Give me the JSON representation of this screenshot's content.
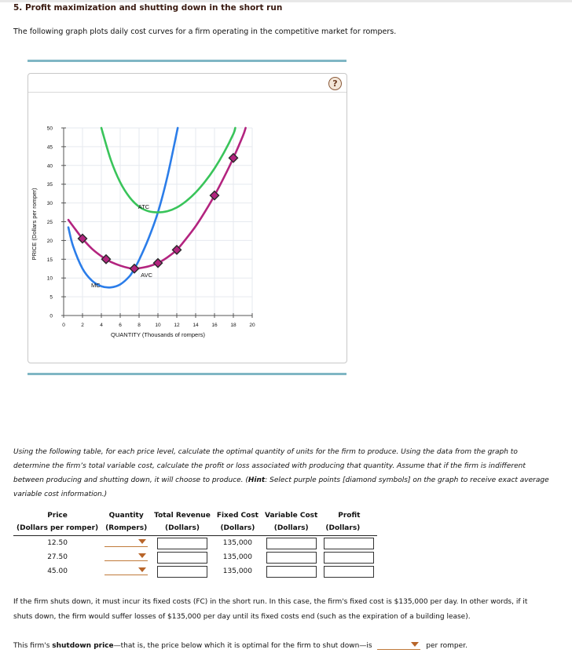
{
  "question": {
    "title": "5. Profit maximization and shutting down in the short run",
    "intro": "The following graph plots daily cost curves for a firm operating in the competitive market for rompers."
  },
  "graph": {
    "help_label": "?",
    "colors": {
      "MC": "#2b7de9",
      "ATC": "#39c45a",
      "AVC": "#b3247f",
      "rule": "#7fb6c4"
    }
  },
  "chart_data": {
    "type": "line",
    "title": "",
    "xlabel": "QUANTITY (Thousands of rompers)",
    "ylabel": "PRICE (Dollars per romper)",
    "xlim": [
      0,
      20
    ],
    "ylim": [
      0,
      50
    ],
    "x_ticks": [
      0,
      2,
      4,
      6,
      8,
      10,
      12,
      14,
      16,
      18,
      20
    ],
    "y_ticks": [
      0,
      5,
      10,
      15,
      20,
      25,
      30,
      35,
      40,
      45,
      50
    ],
    "grid": true,
    "series": [
      {
        "name": "MC",
        "color": "#2b7de9",
        "x": [
          0.5,
          1,
          2,
          3,
          4,
          5,
          6,
          7,
          7.5,
          8,
          9,
          10,
          11,
          12.1
        ],
        "y": [
          23.5,
          18.5,
          12.5,
          9.3,
          7.8,
          7.5,
          8.3,
          10.5,
          12.5,
          14.8,
          20.5,
          27.5,
          37,
          50
        ]
      },
      {
        "name": "ATC",
        "color": "#39c45a",
        "x": [
          4,
          5,
          6,
          7,
          8,
          9,
          10,
          11,
          12,
          13,
          14,
          15,
          16,
          17,
          18,
          18.2
        ],
        "y": [
          50,
          41.5,
          35.5,
          31.5,
          29,
          27.8,
          27.5,
          27.8,
          28.8,
          30.5,
          32.8,
          35.7,
          39.2,
          43.4,
          48.4,
          50
        ]
      },
      {
        "name": "AVC",
        "color": "#b3247f",
        "x": [
          0.5,
          1,
          2,
          3,
          4,
          4.5,
          5,
          6,
          7,
          7.5,
          8,
          9,
          10,
          11,
          12,
          13,
          14,
          15,
          16,
          17,
          18,
          19,
          19.3
        ],
        "y": [
          25.5,
          23.8,
          20.5,
          17.8,
          15.8,
          15,
          14.3,
          13.3,
          12.6,
          12.5,
          12.6,
          13.1,
          14,
          15.5,
          17.5,
          20.5,
          23.8,
          27.7,
          32,
          36.8,
          42,
          47.8,
          50
        ]
      }
    ],
    "avc_points": [
      {
        "x": 2,
        "y": 20.5
      },
      {
        "x": 4.5,
        "y": 15
      },
      {
        "x": 7.5,
        "y": 12.5
      },
      {
        "x": 10,
        "y": 14
      },
      {
        "x": 12,
        "y": 17.5
      },
      {
        "x": 16,
        "y": 32
      },
      {
        "x": 18,
        "y": 42
      }
    ],
    "annotations": [
      {
        "text": "ATC",
        "x": 8.5,
        "y": 28.5
      },
      {
        "text": "AVC",
        "x": 8.8,
        "y": 10.3
      },
      {
        "text": "MC",
        "x": 3.4,
        "y": 7.5
      }
    ]
  },
  "instructions": {
    "line1": "Using the following table, for each price level, calculate the optimal quantity of units for the firm to produce. Using the data from the graph to",
    "line2": "determine the firm’s total variable cost, calculate the profit or loss associated with producing that quantity. Assume that if the firm is indifferent",
    "line3a": "between producing and shutting down, it will choose to produce. (",
    "hint_label": "Hint",
    "line3b": ": Select purple points [diamond symbols] on the graph to receive exact average",
    "line4": "variable cost information.)"
  },
  "table": {
    "headers": [
      {
        "title": "Price",
        "sub": "(Dollars per romper)"
      },
      {
        "title": "Quantity",
        "sub": "(Rompers)"
      },
      {
        "title": "Total Revenue",
        "sub": "(Dollars)"
      },
      {
        "title": "Fixed Cost",
        "sub": "(Dollars)"
      },
      {
        "title": "Variable Cost",
        "sub": "(Dollars)"
      },
      {
        "title": "Profit",
        "sub": "(Dollars)"
      }
    ],
    "rows": [
      {
        "price": "12.50",
        "quantity": "",
        "total_revenue": "",
        "fixed_cost": "135,000",
        "variable_cost": "",
        "profit": ""
      },
      {
        "price": "27.50",
        "quantity": "",
        "total_revenue": "",
        "fixed_cost": "135,000",
        "variable_cost": "",
        "profit": ""
      },
      {
        "price": "45.00",
        "quantity": "",
        "total_revenue": "",
        "fixed_cost": "135,000",
        "variable_cost": "",
        "profit": ""
      }
    ]
  },
  "fixed_cost_text": {
    "line1": "If the firm shuts down, it must incur its fixed costs (FC) in the short run. In this case, the firm's fixed cost is $135,000 per day. In other words, if it",
    "line2": "shuts down, the firm would suffer losses of $135,000 per day until its fixed costs end (such as the expiration of a building lease)."
  },
  "shutdown": {
    "prefix": "This firm's ",
    "bold": "shutdown price",
    "middle": "—that is, the price below which it is optimal for the firm to shut down—is",
    "selected": "",
    "suffix": "per romper."
  }
}
